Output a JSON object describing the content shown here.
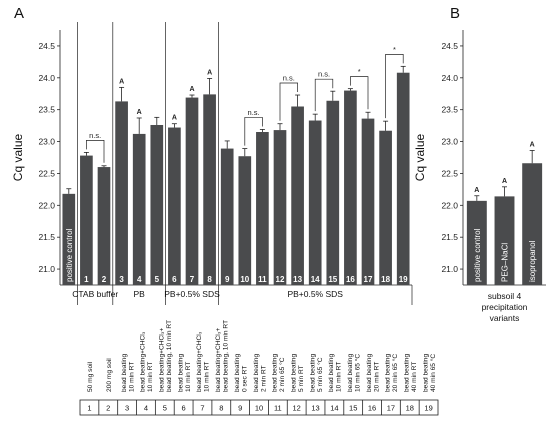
{
  "panel_a": "A",
  "panel_b": "B",
  "chart_data": [
    {
      "type": "bar",
      "ylabel": "Cq value",
      "ylim": [
        20.75,
        24.75
      ],
      "yticks": [
        "21.0",
        "21.5",
        "22.0",
        "22.5",
        "23.0",
        "23.5",
        "24.0",
        "24.5"
      ],
      "categories": [
        "positive control",
        "1",
        "2",
        "3",
        "4",
        "5",
        "6",
        "7",
        "8",
        "9",
        "10",
        "11",
        "12",
        "13",
        "14",
        "15",
        "16",
        "17",
        "18",
        "19"
      ],
      "values": [
        22.18,
        22.78,
        22.6,
        23.63,
        23.12,
        23.26,
        23.22,
        23.69,
        23.74,
        22.89,
        22.77,
        23.15,
        23.18,
        23.55,
        23.33,
        23.64,
        23.8,
        23.36,
        23.17,
        24.08
      ],
      "errors": [
        0.08,
        0.05,
        0.02,
        0.22,
        0.25,
        0.12,
        0.06,
        0.04,
        0.25,
        0.12,
        0.12,
        0.04,
        0.1,
        0.18,
        0.1,
        0.15,
        0.03,
        0.1,
        0.15,
        0.1
      ],
      "letters": [
        "",
        "",
        "",
        "A",
        "A",
        "",
        "A",
        "A",
        "A",
        "",
        "",
        "",
        "",
        "",
        "",
        "",
        "",
        "",
        "",
        ""
      ],
      "comparisons": [
        {
          "from": "1",
          "to": "2",
          "label": "n.s."
        },
        {
          "from": "10",
          "to": "11",
          "label": "n.s."
        },
        {
          "from": "12",
          "to": "13",
          "label": "n.s."
        },
        {
          "from": "14",
          "to": "15",
          "label": "n.s."
        },
        {
          "from": "16",
          "to": "17",
          "label": "*"
        },
        {
          "from": "18",
          "to": "19",
          "label": "*"
        }
      ],
      "groups": [
        {
          "label": "CTAB buffer",
          "from": "1",
          "to": "2"
        },
        {
          "label": "PB",
          "from": "3",
          "to": "5"
        },
        {
          "label": "PB+0.5% SDS",
          "from": "6",
          "to": "8"
        },
        {
          "label": "PB+0.5% SDS",
          "from": "9",
          "to": "19"
        }
      ],
      "conditions": [
        [
          "50 mg soil"
        ],
        [
          "200 mg soil"
        ],
        [
          "bead beating",
          "10 min RT"
        ],
        [
          "bead beating+CHCl₃",
          "10 min RT"
        ],
        [
          "bead beating+CHCl₃+",
          "bead beating, 10 min RT"
        ],
        [
          "bead beating",
          "10 min RT"
        ],
        [
          "bead beating+CHCl₃",
          "10 min RT"
        ],
        [
          "bead beating+CHCl₃+",
          "bead beating, 10 min RT"
        ],
        [
          "bead beating",
          "0 sec RT"
        ],
        [
          "bead beating",
          "2 min RT"
        ],
        [
          "bead beating",
          "2 min 65 °C"
        ],
        [
          "bead beating",
          "5 min RT"
        ],
        [
          "bead beating",
          "5 min 65 °C"
        ],
        [
          "bead beating",
          "10 min RT"
        ],
        [
          "bead beating",
          "10 min 65 °C"
        ],
        [
          "bead beating",
          "20 min RT"
        ],
        [
          "bead beating",
          "20 min 65 °C"
        ],
        [
          "bead beating",
          "40 min RT"
        ],
        [
          "bead beating",
          "40 min 65 °C"
        ]
      ],
      "table_numbers": [
        "1",
        "2",
        "3",
        "4",
        "5",
        "6",
        "7",
        "8",
        "9",
        "10",
        "11",
        "12",
        "13",
        "14",
        "15",
        "16",
        "17",
        "18",
        "19"
      ]
    },
    {
      "type": "bar",
      "ylabel": "Cq value",
      "ylim": [
        20.75,
        24.75
      ],
      "yticks": [
        "21.0",
        "21.5",
        "22.0",
        "22.5",
        "23.0",
        "23.5",
        "24.0",
        "24.5"
      ],
      "categories": [
        "positive control",
        "PEG–NaCl",
        "isopropanol"
      ],
      "values": [
        22.07,
        22.14,
        22.66
      ],
      "errors": [
        0.08,
        0.15,
        0.2
      ],
      "letters": [
        "A",
        "A",
        "A"
      ],
      "group_label": [
        "subsoil 4",
        "precipitation",
        "variants"
      ]
    }
  ]
}
